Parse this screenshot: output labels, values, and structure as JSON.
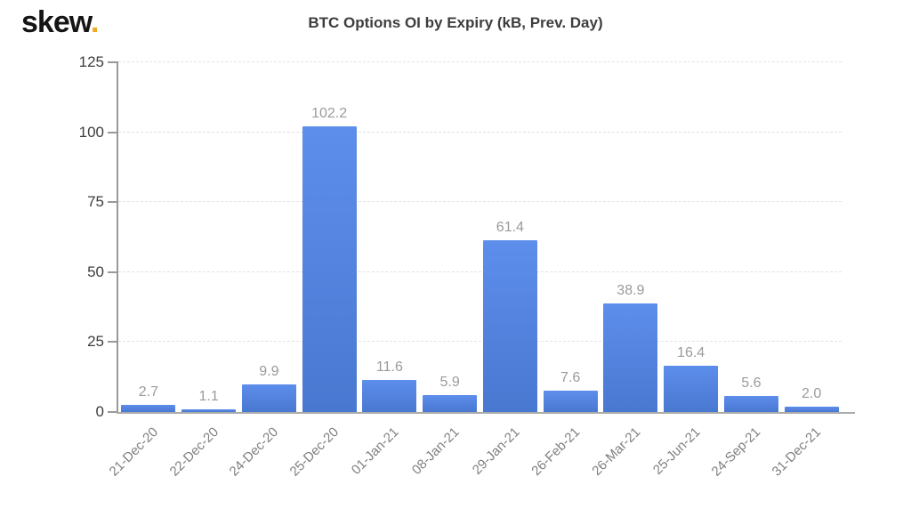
{
  "logo": {
    "text": "skew",
    "dot": "."
  },
  "colors": {
    "logo_dot": "#F0A91E",
    "bar_top": "#5E8EEC",
    "bar_bottom": "#4878D0",
    "gridline": "#E3E3E3",
    "axis_line": "#999999",
    "baseline": "#ABABAB",
    "title_text": "#3D3D3D",
    "value_label": "#9A9A9A",
    "x_label": "#7F7F7F",
    "y_label": "#3D3D3D"
  },
  "chart_data": {
    "type": "bar",
    "title": "BTC Options OI by Expiry (k₿, Prev. Day)",
    "categories": [
      "21-Dec-20",
      "22-Dec-20",
      "24-Dec-20",
      "25-Dec-20",
      "01-Jan-21",
      "08-Jan-21",
      "29-Jan-21",
      "26-Feb-21",
      "26-Mar-21",
      "25-Jun-21",
      "24-Sep-21",
      "31-Dec-21"
    ],
    "values": [
      2.7,
      1.1,
      9.9,
      102.2,
      11.6,
      5.9,
      61.4,
      7.6,
      38.9,
      16.4,
      5.6,
      2.0
    ],
    "data_labels": [
      "2.7",
      "1.1",
      "9.9",
      "102.2",
      "11.6",
      "5.9",
      "61.4",
      "7.6",
      "38.9",
      "16.4",
      "5.6",
      "2.0"
    ],
    "xlabel": "",
    "ylabel": "",
    "ylim": [
      0,
      125
    ],
    "yticks": [
      0,
      25,
      50,
      75,
      100,
      125
    ],
    "grid": "horizontal-dashed",
    "legend": "none",
    "x_label_rotation": -45
  }
}
